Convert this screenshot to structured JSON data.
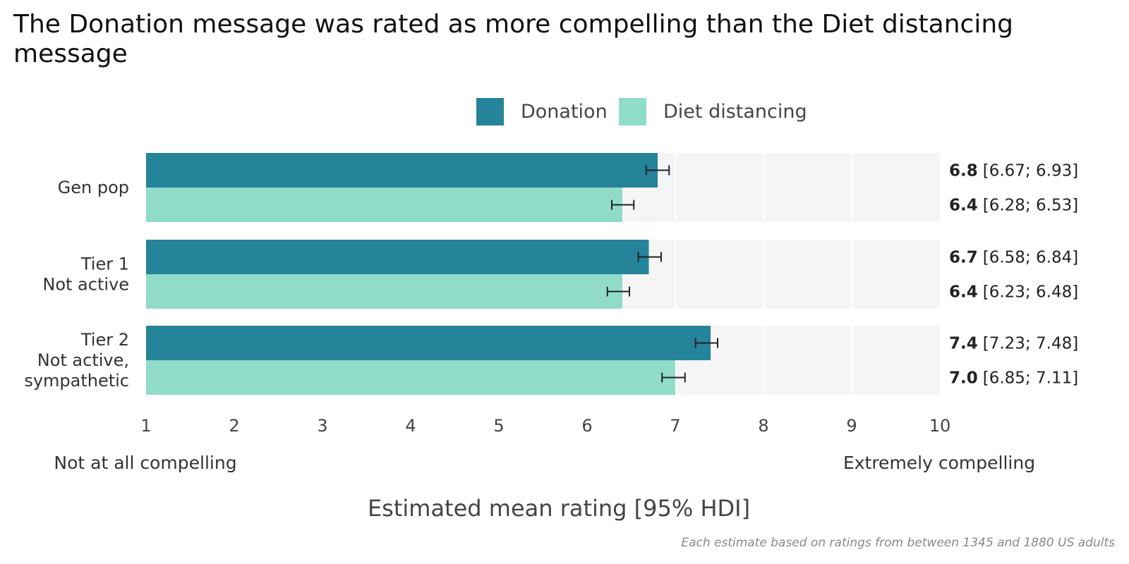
{
  "title": "The Donation message was rated as more compelling than the Diet distancing message",
  "caption": "Each estimate based on ratings from between 1345 and 1880 US adults",
  "colors": {
    "donation": "#25839a",
    "diet": "#91dcc8",
    "panel": "#f5f5f5",
    "grid": "#ffffff",
    "error": "#222222"
  },
  "chart_data": {
    "type": "bar",
    "orientation": "horizontal",
    "title": "The Donation message was rated as more compelling than the Diet distancing message",
    "xlabel": "Estimated mean rating [95% HDI]",
    "xlim": [
      1,
      10
    ],
    "xticks": [
      1,
      2,
      3,
      4,
      5,
      6,
      7,
      8,
      9,
      10
    ],
    "x_anchor_low": "Not at all compelling",
    "x_anchor_high": "Extremely compelling",
    "legend_position": "top-center",
    "categories": [
      {
        "lines": [
          "Gen pop"
        ]
      },
      {
        "lines": [
          "Tier 1",
          "Not active"
        ]
      },
      {
        "lines": [
          "Tier 2",
          "Not active,",
          "sympathetic"
        ]
      }
    ],
    "series": [
      {
        "name": "Donation",
        "values": [
          6.8,
          6.7,
          7.4
        ],
        "ci_low": [
          6.67,
          6.58,
          7.23
        ],
        "ci_high": [
          6.93,
          6.84,
          7.48
        ],
        "labels": [
          "6.8",
          "6.7",
          "7.4"
        ],
        "ci_labels": [
          "[6.67; 6.93]",
          "[6.58; 6.84]",
          "[7.23; 7.48]"
        ]
      },
      {
        "name": "Diet distancing",
        "values": [
          6.4,
          6.4,
          7.0
        ],
        "ci_low": [
          6.28,
          6.23,
          6.85
        ],
        "ci_high": [
          6.53,
          6.48,
          7.11
        ],
        "labels": [
          "6.4",
          "6.4",
          "7.0"
        ],
        "ci_labels": [
          "[6.28; 6.53]",
          "[6.23; 6.48]",
          "[6.85; 7.11]"
        ]
      }
    ]
  }
}
